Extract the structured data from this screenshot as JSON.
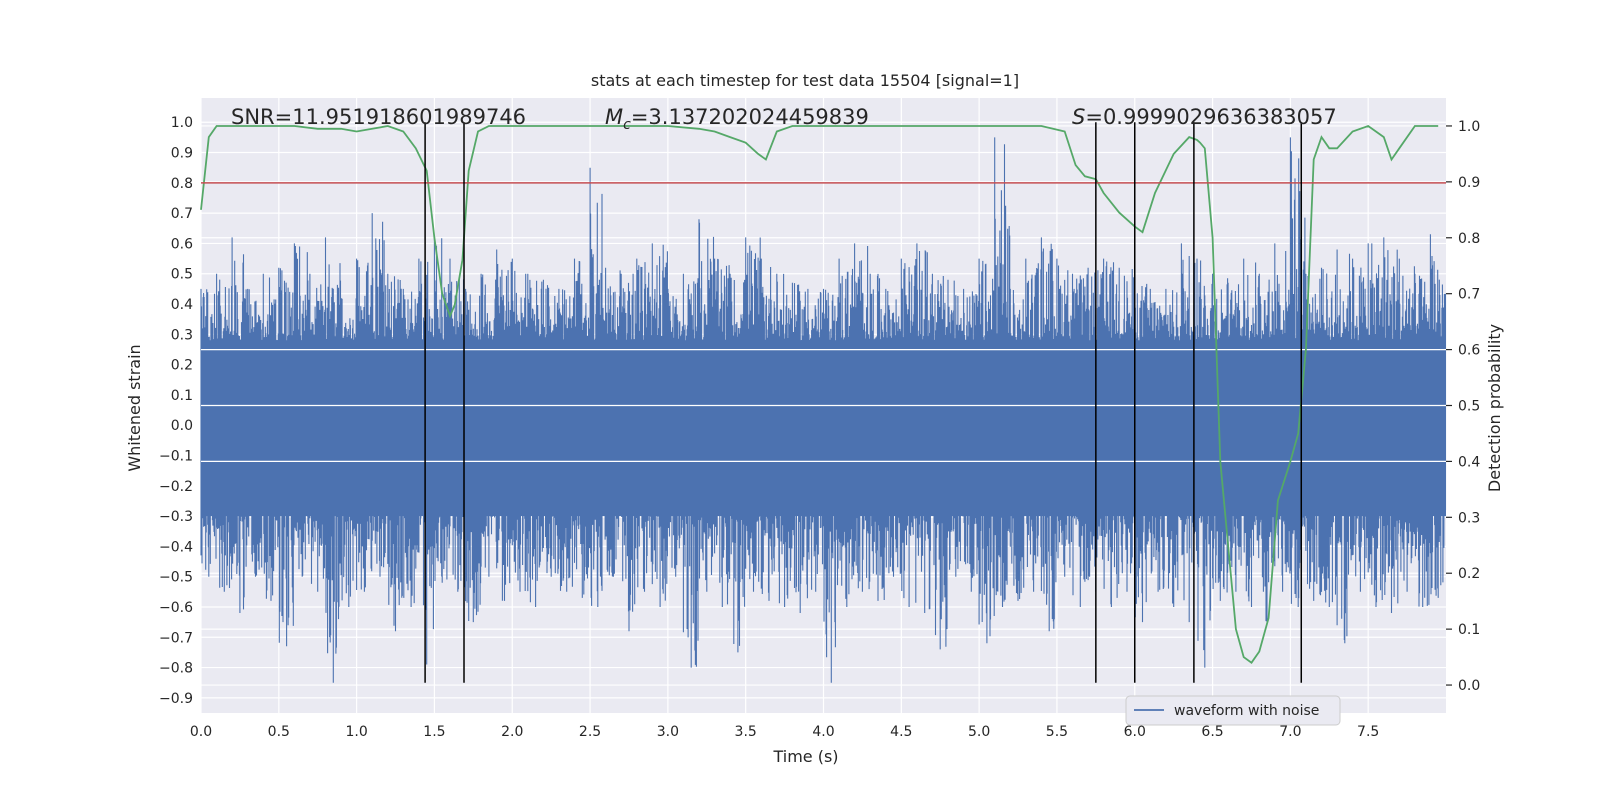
{
  "chart_data": {
    "type": "line",
    "title": "stats at each timestep for test data 15504 [signal=1]",
    "xlabel": "Time (s)",
    "ylabel": "Whitened strain",
    "y2label": "Detection probability",
    "xlim": [
      0,
      8
    ],
    "ylim": [
      -0.95,
      1.08
    ],
    "y2lim": [
      -0.05,
      1.05
    ],
    "xticks": [
      0.0,
      0.5,
      1.0,
      1.5,
      2.0,
      2.5,
      3.0,
      3.5,
      4.0,
      4.5,
      5.0,
      5.5,
      6.0,
      6.5,
      7.0,
      7.5
    ],
    "xtick_labels": [
      "0.0",
      "0.5",
      "1.0",
      "1.5",
      "2.0",
      "2.5",
      "3.0",
      "3.5",
      "4.0",
      "4.5",
      "5.0",
      "5.5",
      "6.0",
      "6.5",
      "7.0",
      "7.5"
    ],
    "yticks": [
      1.0,
      0.9,
      0.8,
      0.7,
      0.6,
      0.5,
      0.4,
      0.3,
      0.2,
      0.1,
      0.0,
      -0.1,
      -0.2,
      -0.3,
      -0.4,
      -0.5,
      -0.6,
      -0.7,
      -0.8,
      -0.9
    ],
    "ytick_labels": [
      "1.0",
      "0.9",
      "0.8",
      "0.7",
      "0.6",
      "0.5",
      "0.4",
      "0.3",
      "0.2",
      "0.1",
      "0.0",
      "-0.1",
      "-0.2",
      "-0.3",
      "-0.4",
      "-0.5",
      "-0.6",
      "-0.7",
      "-0.8",
      "-0.9"
    ],
    "y2ticks": [
      1.0,
      0.9,
      0.8,
      0.7,
      0.6,
      0.5,
      0.4,
      0.3,
      0.2,
      0.1,
      0.0
    ],
    "y2tick_labels": [
      "1.0",
      "0.9",
      "0.8",
      "0.7",
      "0.6",
      "0.5",
      "0.4",
      "0.3",
      "0.2",
      "0.1",
      "0.0"
    ],
    "grid": true,
    "legend": {
      "placement": "bottom-right",
      "entries": [
        "waveform with noise"
      ]
    },
    "annotations": {
      "snr": "SNR=11.951918601989746",
      "mc_symbol": "M",
      "mc_sub": "c",
      "mc_value": "=3.137202024459839",
      "s_symbol": "S",
      "s_value": "=0.9999029636383057"
    },
    "series": [
      {
        "name": "waveform with noise",
        "color": "#4c72b0",
        "axis": "left",
        "description_hidden": "dense noisy waveform; envelope mostly between -0.4 and 0.45 with spikes",
        "envelope_upper": [
          0.45,
          0.5,
          0.62,
          0.45,
          0.5,
          0.52,
          0.6,
          0.5,
          0.62,
          0.42,
          0.55,
          0.7,
          0.5,
          0.45,
          0.55,
          0.62,
          0.55,
          0.45,
          0.5,
          0.58,
          0.55,
          0.5,
          0.48,
          0.45,
          0.55,
          0.85,
          0.52,
          0.5,
          0.55,
          0.6,
          0.45,
          0.5,
          0.68,
          0.55,
          0.5,
          0.62,
          0.55,
          0.5,
          0.47,
          0.45,
          0.45,
          0.55,
          0.6,
          0.5,
          0.45,
          0.55,
          0.6,
          0.5,
          0.48,
          0.45,
          0.55,
          0.95,
          0.45,
          0.55,
          0.62,
          0.55,
          0.5,
          0.52,
          0.55,
          0.52,
          0.48,
          0.45,
          0.45,
          0.6,
          0.55,
          0.5,
          0.47,
          0.55,
          0.5,
          0.6,
          0.95,
          0.5,
          0.52,
          0.58,
          0.55,
          0.6,
          0.62,
          0.55,
          0.5,
          0.63
        ],
        "envelope_lower": [
          -0.5,
          -0.55,
          -0.62,
          -0.5,
          -0.58,
          -0.73,
          -0.5,
          -0.55,
          -0.85,
          -0.6,
          -0.55,
          -0.5,
          -0.68,
          -0.6,
          -0.79,
          -0.52,
          -0.55,
          -0.65,
          -0.5,
          -0.58,
          -0.55,
          -0.6,
          -0.5,
          -0.55,
          -0.57,
          -0.6,
          -0.5,
          -0.68,
          -0.55,
          -0.6,
          -0.5,
          -0.8,
          -0.55,
          -0.6,
          -0.75,
          -0.55,
          -0.58,
          -0.6,
          -0.62,
          -0.55,
          -0.85,
          -0.6,
          -0.55,
          -0.58,
          -0.5,
          -0.6,
          -0.62,
          -0.74,
          -0.5,
          -0.55,
          -0.72,
          -0.6,
          -0.58,
          -0.55,
          -0.68,
          -0.5,
          -0.6,
          -0.55,
          -0.6,
          -0.55,
          -0.65,
          -0.55,
          -0.6,
          -0.65,
          -0.8,
          -0.58,
          -0.55,
          -0.6,
          -0.65,
          -0.55,
          -0.6,
          -0.58,
          -0.6,
          -0.72,
          -0.55,
          -0.6,
          -0.62,
          -0.55,
          -0.6,
          -0.57
        ]
      },
      {
        "name": "",
        "color": "#55a868",
        "axis": "right",
        "x": [
          0.0,
          0.05,
          0.1,
          0.15,
          0.25,
          0.4,
          0.6,
          0.75,
          0.9,
          1.0,
          1.1,
          1.2,
          1.3,
          1.38,
          1.45,
          1.5,
          1.55,
          1.6,
          1.63,
          1.68,
          1.72,
          1.78,
          1.85,
          1.95,
          2.1,
          2.4,
          2.7,
          3.0,
          3.2,
          3.3,
          3.4,
          3.5,
          3.58,
          3.63,
          3.7,
          3.8,
          4.0,
          4.5,
          5.0,
          5.4,
          5.55,
          5.62,
          5.68,
          5.75,
          5.8,
          5.9,
          6.0,
          6.05,
          6.13,
          6.25,
          6.35,
          6.4,
          6.42,
          6.45,
          6.5,
          6.55,
          6.6,
          6.65,
          6.7,
          6.75,
          6.8,
          6.86,
          6.92,
          7.0,
          7.05,
          7.1,
          7.15,
          7.2,
          7.25,
          7.3,
          7.4,
          7.5,
          7.6,
          7.65,
          7.7,
          7.8,
          7.9,
          7.95
        ],
        "y": [
          0.85,
          0.98,
          1.0,
          1.0,
          1.0,
          1.0,
          1.0,
          0.995,
          0.995,
          0.99,
          0.995,
          1.0,
          0.99,
          0.96,
          0.92,
          0.8,
          0.7,
          0.66,
          0.68,
          0.76,
          0.92,
          0.99,
          1.0,
          1.0,
          1.0,
          1.0,
          1.0,
          1.0,
          0.995,
          0.99,
          0.98,
          0.97,
          0.95,
          0.94,
          0.99,
          1.0,
          1.0,
          1.0,
          1.0,
          1.0,
          0.99,
          0.93,
          0.91,
          0.905,
          0.88,
          0.845,
          0.82,
          0.81,
          0.88,
          0.95,
          0.98,
          0.975,
          0.97,
          0.96,
          0.8,
          0.4,
          0.25,
          0.1,
          0.05,
          0.04,
          0.06,
          0.12,
          0.33,
          0.4,
          0.45,
          0.6,
          0.94,
          0.98,
          0.96,
          0.96,
          0.99,
          1.0,
          0.98,
          0.94,
          0.96,
          1.0,
          1.0,
          1.0
        ]
      }
    ],
    "hline_left_value": 0.8,
    "hline_color": "#c44e52",
    "vlines_x": [
      1.44,
      1.69,
      5.75,
      6.0,
      6.38,
      7.07
    ],
    "vlines_range": [
      -0.85,
      1.0
    ]
  }
}
